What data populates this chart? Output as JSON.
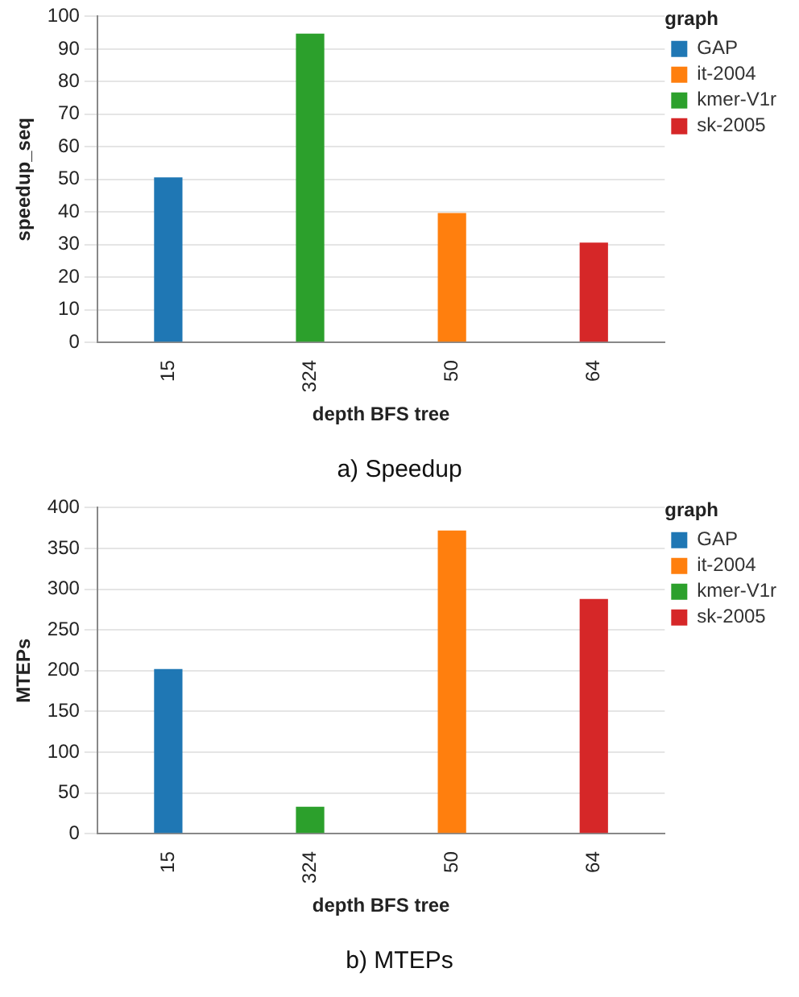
{
  "chart_data": [
    {
      "type": "bar",
      "title": "a) Speedup",
      "xlabel": "depth BFS tree",
      "ylabel": "speedup_seq",
      "legend_title": "graph",
      "categories": [
        "15",
        "324",
        "50",
        "64"
      ],
      "series": [
        {
          "name": "GAP",
          "color": "#1f77b4",
          "values": [
            50.6,
            null,
            null,
            null
          ]
        },
        {
          "name": "it-2004",
          "color": "#ff7f0e",
          "values": [
            null,
            null,
            39.7,
            null
          ]
        },
        {
          "name": "kmer-V1r",
          "color": "#2ca02c",
          "values": [
            null,
            94.7,
            null,
            null
          ]
        },
        {
          "name": "sk-2005",
          "color": "#d62728",
          "values": [
            null,
            null,
            null,
            30.6
          ]
        }
      ],
      "ylim": [
        0,
        100
      ],
      "yticks": [
        0,
        10,
        20,
        30,
        40,
        50,
        60,
        70,
        80,
        90,
        100
      ],
      "grid": "y",
      "legend": "top right"
    },
    {
      "type": "bar",
      "title": "b) MTEPs",
      "xlabel": "depth BFS tree",
      "ylabel": "MTEPs",
      "legend_title": "graph",
      "categories": [
        "15",
        "324",
        "50",
        "64"
      ],
      "series": [
        {
          "name": "GAP",
          "color": "#1f77b4",
          "values": [
            202,
            null,
            null,
            null
          ]
        },
        {
          "name": "it-2004",
          "color": "#ff7f0e",
          "values": [
            null,
            null,
            372,
            null
          ]
        },
        {
          "name": "kmer-V1r",
          "color": "#2ca02c",
          "values": [
            null,
            33,
            null,
            null
          ]
        },
        {
          "name": "sk-2005",
          "color": "#d62728",
          "values": [
            null,
            null,
            null,
            288
          ]
        }
      ],
      "ylim": [
        0,
        400
      ],
      "yticks": [
        0,
        50,
        100,
        150,
        200,
        250,
        300,
        350,
        400
      ],
      "grid": "y",
      "legend": "top right"
    }
  ]
}
